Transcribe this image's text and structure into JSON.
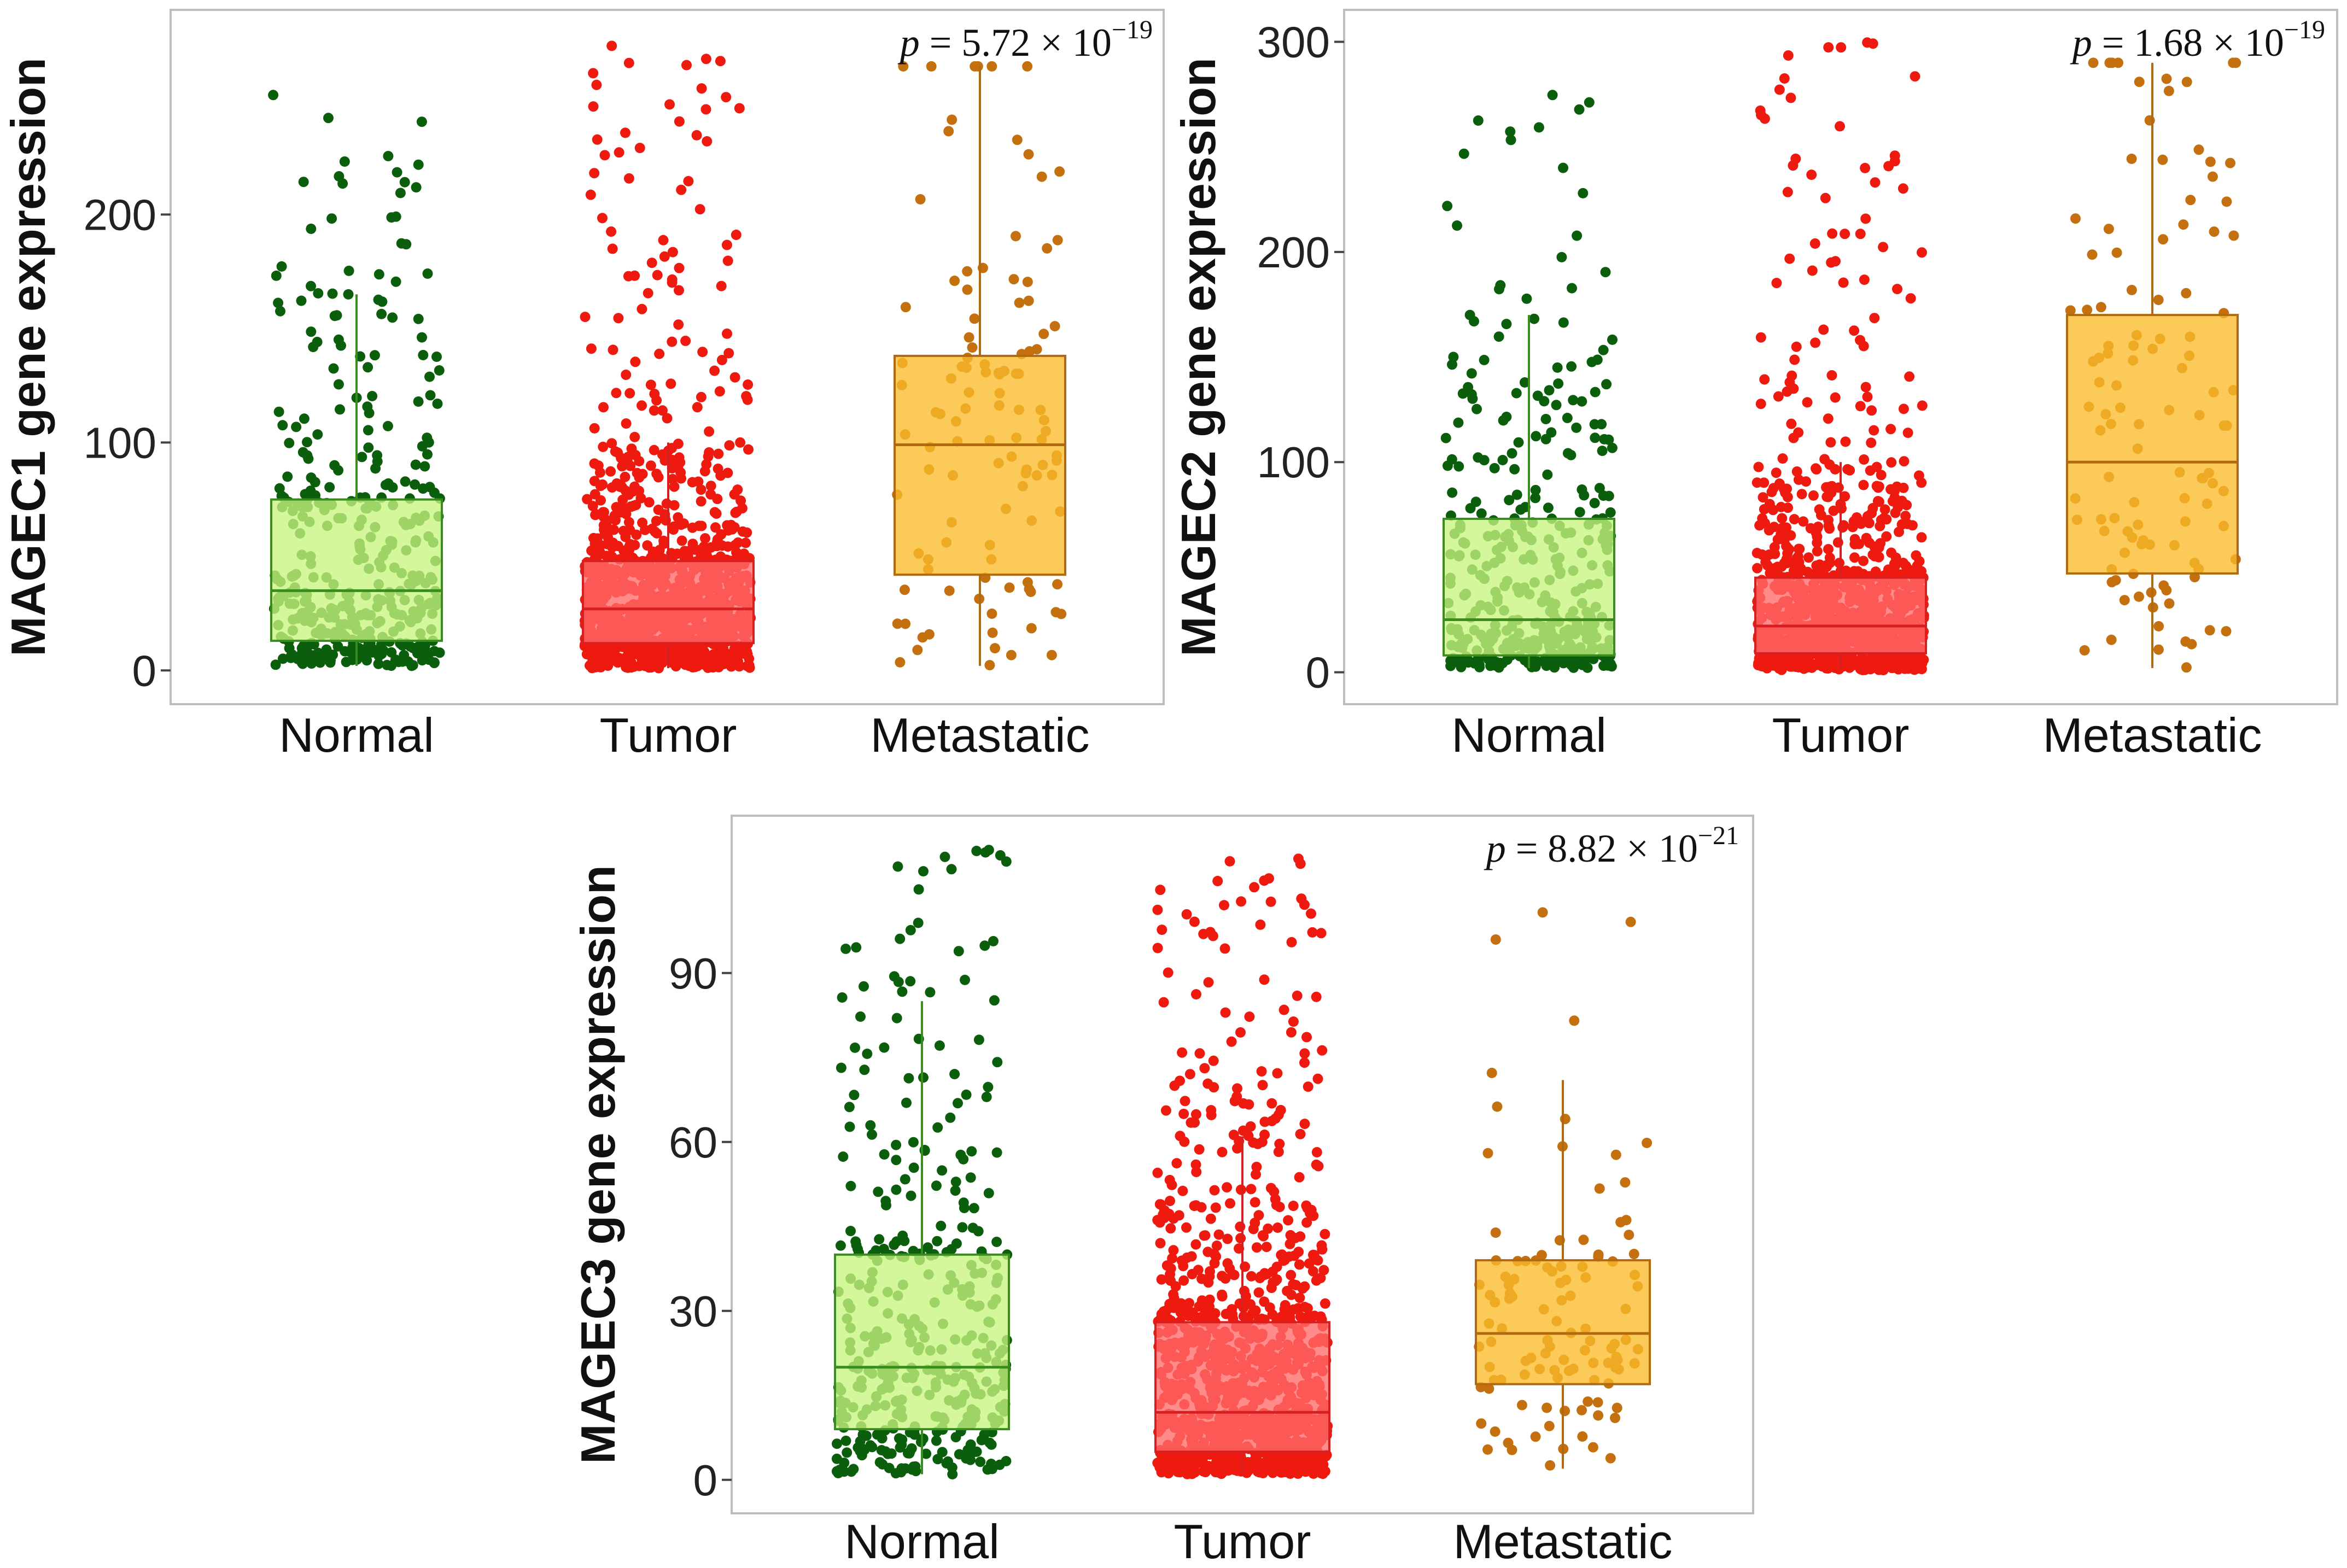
{
  "chart_data": [
    {
      "type": "box",
      "ylabel": "MAGEC1 gene expression",
      "ylim": [
        -10,
        285
      ],
      "yticks": [
        0,
        100,
        200
      ],
      "p_value": {
        "prefix": "p",
        "text": " = 5.72 × 10",
        "exponent": "−19"
      },
      "categories": [
        "Normal",
        "Tumor",
        "Metastatic"
      ],
      "groups": [
        {
          "name": "Normal",
          "n": 380,
          "min": 2,
          "q1": 13,
          "median": 35,
          "q3": 75,
          "whisker_high": 165,
          "max": 255,
          "fill": "#c8f57f",
          "edge": "#3b8c1e",
          "point": "#0b5e0b"
        },
        {
          "name": "Tumor",
          "n": 1100,
          "min": 1,
          "q1": 12,
          "median": 27,
          "q3": 48,
          "whisker_high": 100,
          "max": 275,
          "fill": "#ff6a6a",
          "edge": "#d81e1e",
          "point": "#ee1a10"
        },
        {
          "name": "Metastatic",
          "n": 110,
          "min": 2,
          "q1": 42,
          "median": 99,
          "q3": 138,
          "whisker_high": 265,
          "max": 265,
          "fill": "#fbbb2a",
          "edge": "#b26a10",
          "point": "#c4700e"
        }
      ]
    },
    {
      "type": "box",
      "ylabel": "MAGEC2 gene expression",
      "ylim": [
        -10,
        310
      ],
      "yticks": [
        0,
        100,
        200,
        300
      ],
      "p_value": {
        "prefix": "p",
        "text": " = 1.68 × 10",
        "exponent": "−19"
      },
      "categories": [
        "Normal",
        "Tumor",
        "Metastatic"
      ],
      "groups": [
        {
          "name": "Normal",
          "n": 380,
          "min": 2,
          "q1": 8,
          "median": 25,
          "q3": 73,
          "whisker_high": 170,
          "max": 290,
          "fill": "#c8f57f",
          "edge": "#3b8c1e",
          "point": "#0b5e0b"
        },
        {
          "name": "Tumor",
          "n": 1100,
          "min": 1,
          "q1": 9,
          "median": 22,
          "q3": 45,
          "whisker_high": 100,
          "max": 300,
          "fill": "#ff6a6a",
          "edge": "#d81e1e",
          "point": "#ee1a10"
        },
        {
          "name": "Metastatic",
          "n": 110,
          "min": 2,
          "q1": 47,
          "median": 100,
          "q3": 170,
          "whisker_high": 290,
          "max": 290,
          "fill": "#fbbb2a",
          "edge": "#b26a10",
          "point": "#c4700e"
        }
      ]
    },
    {
      "type": "box",
      "ylabel": "MAGEC3 gene expression",
      "ylim": [
        -4,
        116
      ],
      "yticks": [
        0,
        30,
        60,
        90
      ],
      "p_value": {
        "prefix": "p",
        "text": " = 8.82 × 10",
        "exponent": "−21"
      },
      "categories": [
        "Normal",
        "Tumor",
        "Metastatic"
      ],
      "groups": [
        {
          "name": "Normal",
          "n": 380,
          "min": 1,
          "q1": 9,
          "median": 20,
          "q3": 40,
          "whisker_high": 85,
          "max": 112,
          "fill": "#c8f57f",
          "edge": "#3b8c1e",
          "point": "#0b5e0b"
        },
        {
          "name": "Tumor",
          "n": 1100,
          "min": 1,
          "q1": 5,
          "median": 12,
          "q3": 28,
          "whisker_high": 61,
          "max": 111,
          "fill": "#ff6a6a",
          "edge": "#d81e1e",
          "point": "#ee1a10"
        },
        {
          "name": "Metastatic",
          "n": 110,
          "min": 2,
          "q1": 17,
          "median": 26,
          "q3": 39,
          "whisker_high": 71,
          "max": 103,
          "fill": "#fbbb2a",
          "edge": "#b26a10",
          "point": "#c4700e"
        }
      ]
    }
  ]
}
